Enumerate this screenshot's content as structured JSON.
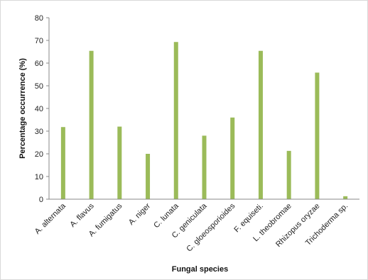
{
  "chart_data": {
    "type": "bar",
    "title": "",
    "xlabel": "Fungal species",
    "ylabel": "Percentage occurrence (%)",
    "ylim": [
      0,
      80
    ],
    "yticks": [
      0,
      10,
      20,
      30,
      40,
      50,
      60,
      70,
      80
    ],
    "grid": false,
    "legend": "none",
    "bar_color": "#9bbb59",
    "categories": [
      "A. alternata",
      "A. flavus",
      "A. fumigatus",
      "A. niger",
      "C. lunata",
      "C. geniculata",
      "C. gloeosporioides",
      "F. equiseti.",
      "L. theobromae",
      "Rhizopus oryzae",
      "Trichoderma sp."
    ],
    "values": [
      31.8,
      65.4,
      32.0,
      20.0,
      69.3,
      28.0,
      36.0,
      65.4,
      21.3,
      55.8,
      1.3
    ]
  }
}
